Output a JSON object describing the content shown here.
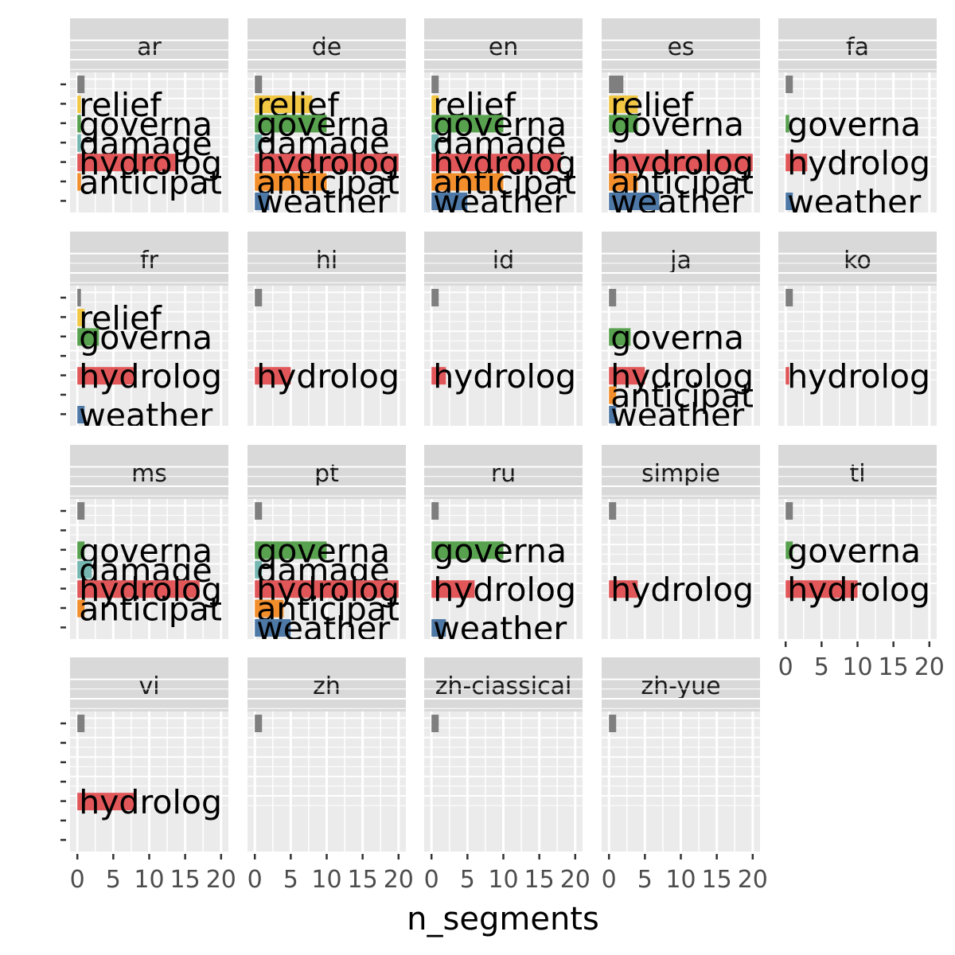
{
  "chart_data": {
    "type": "bar",
    "orientation": "horizontal",
    "facet_by": "wiki language",
    "xlabel": "n_segments",
    "ylabel": "",
    "xlim": [
      0,
      20
    ],
    "x_ticks": [
      "0",
      "5",
      "10",
      "15",
      "20"
    ],
    "grid": true,
    "legend": "none",
    "y_categories": [
      "",
      "relief",
      "governa",
      "damage",
      "hydrolog",
      "anticipat",
      "weather"
    ],
    "category_colors": {
      "": "#7f7f7f",
      "relief": "#f2c744",
      "governa": "#58a14e",
      "damage": "#76b7b2",
      "hydrolog": "#e15759",
      "anticipat": "#f28e2b",
      "weather": "#4e79a7"
    },
    "facets": [
      {
        "name": "ar",
        "values": {
          "": 1,
          "relief": 0.5,
          "governa": 0.5,
          "damage": 0.5,
          "hydrolog": 14,
          "anticipat": 0.5
        }
      },
      {
        "name": "de",
        "values": {
          "": 1,
          "relief": 8,
          "governa": 10,
          "damage": 1,
          "hydrolog": 20,
          "anticipat": 10,
          "weather": 2
        }
      },
      {
        "name": "en",
        "values": {
          "": 1,
          "relief": 1,
          "governa": 10,
          "damage": 1,
          "hydrolog": 18,
          "anticipat": 10,
          "weather": 5
        }
      },
      {
        "name": "es",
        "values": {
          "": 2,
          "relief": 4,
          "governa": 4,
          "hydrolog": 20,
          "anticipat": 4,
          "weather": 7
        }
      },
      {
        "name": "fa",
        "values": {
          "": 1,
          "governa": 0.5,
          "hydrolog": 3,
          "weather": 1
        }
      },
      {
        "name": "fr",
        "values": {
          "": 0.5,
          "relief": 1,
          "governa": 3,
          "hydrolog": 8,
          "weather": 1
        }
      },
      {
        "name": "hi",
        "values": {
          "": 1,
          "hydrolog": 5
        }
      },
      {
        "name": "id",
        "values": {
          "": 1,
          "hydrolog": 2
        }
      },
      {
        "name": "ja",
        "values": {
          "": 1,
          "governa": 3,
          "hydrolog": 5,
          "anticipat": 1,
          "weather": 1
        }
      },
      {
        "name": "ko",
        "values": {
          "": 1,
          "hydrolog": 0.5
        }
      },
      {
        "name": "ms",
        "values": {
          "": 1,
          "governa": 1,
          "damage": 2,
          "hydrolog": 17,
          "anticipat": 1
        }
      },
      {
        "name": "pt",
        "values": {
          "": 1,
          "governa": 10,
          "damage": 1,
          "hydrolog": 20,
          "anticipat": 4,
          "weather": 5
        }
      },
      {
        "name": "ru",
        "values": {
          "": 1,
          "governa": 10,
          "hydrolog": 6,
          "weather": 2
        }
      },
      {
        "name": "simple",
        "values": {
          "": 1,
          "hydrolog": 4
        }
      },
      {
        "name": "tl",
        "values": {
          "": 1,
          "governa": 1,
          "hydrolog": 10
        }
      },
      {
        "name": "vi",
        "values": {
          "": 1,
          "hydrolog": 8
        }
      },
      {
        "name": "zh",
        "values": {
          "": 1
        }
      },
      {
        "name": "zh-classical",
        "values": {
          "": 1
        }
      },
      {
        "name": "zh-yue",
        "values": {
          "": 1
        }
      }
    ]
  }
}
